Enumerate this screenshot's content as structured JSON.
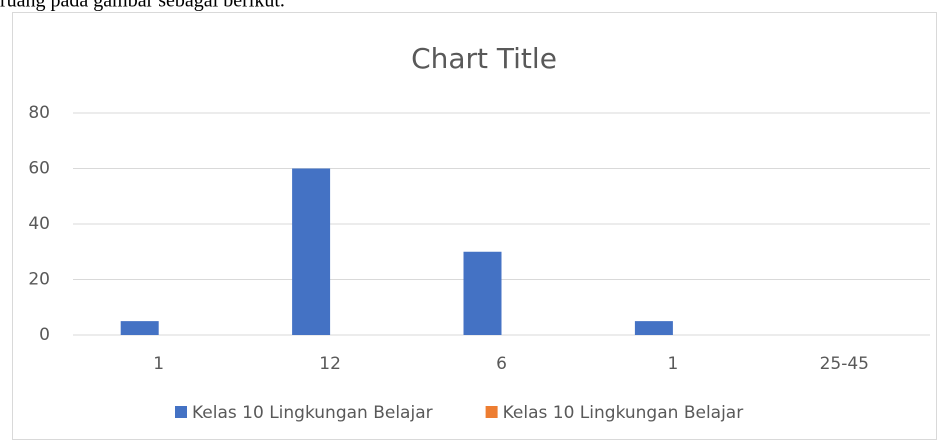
{
  "caption": "ruang pada gambar sebagai berikut.",
  "chart_data": {
    "type": "bar",
    "title": "Chart Title",
    "categories": [
      "1",
      "12",
      "6",
      "1",
      "25-45"
    ],
    "series": [
      {
        "name": "Kelas 10 Lingkungan Belajar",
        "color": "#4472c4",
        "values": [
          5,
          60,
          30,
          5,
          0
        ]
      },
      {
        "name": "Kelas 10 Lingkungan Belajar",
        "color": "#ed7d31",
        "values": [
          0,
          0,
          0,
          0,
          0
        ]
      }
    ],
    "ylim": [
      0,
      80
    ],
    "yticks": [
      0,
      20,
      40,
      60,
      80
    ],
    "grid": true
  }
}
